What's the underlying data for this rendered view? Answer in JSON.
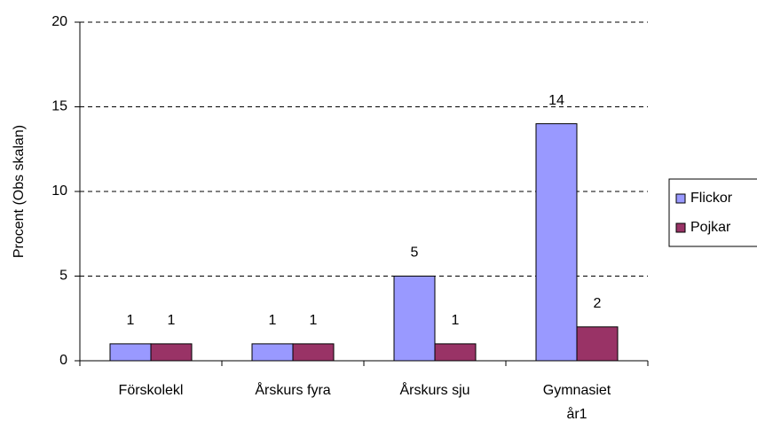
{
  "chart_data": {
    "type": "bar",
    "y_label": "Procent (Obs skalan)",
    "categories": [
      "Förskolekl",
      "Årskurs fyra",
      "Årskurs sju",
      "Gymnasiet år1"
    ],
    "series": [
      {
        "name": "Flickor",
        "color": "#9999ff",
        "values": [
          1,
          1,
          5,
          14
        ]
      },
      {
        "name": "Pojkar",
        "color": "#993366",
        "values": [
          1,
          1,
          1,
          2
        ]
      }
    ],
    "ylim": [
      0,
      20
    ],
    "yticks": [
      0,
      5,
      10,
      15,
      20
    ],
    "grid": true,
    "legend": "right"
  }
}
